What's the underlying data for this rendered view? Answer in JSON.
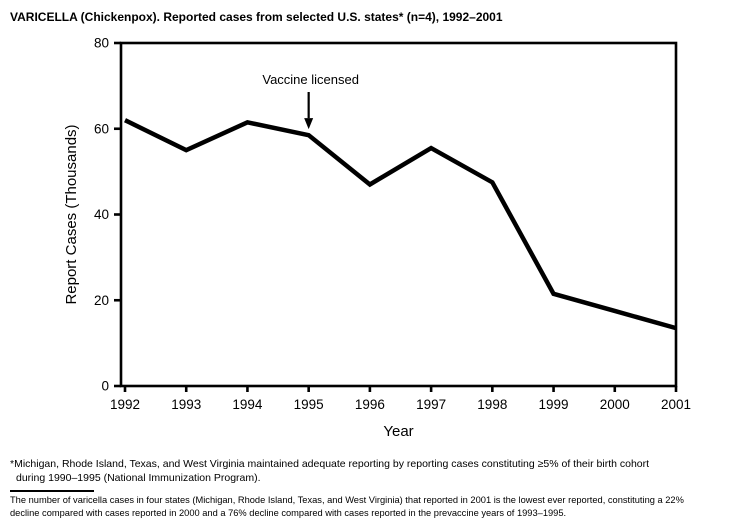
{
  "chart_data": {
    "type": "line",
    "title": "VARICELLA (Chickenpox). Reported cases from selected U.S. states* (n=4), 1992–2001",
    "x": [
      1992,
      1993,
      1994,
      1995,
      1996,
      1997,
      1998,
      1999,
      2000,
      2001
    ],
    "series": [
      {
        "name": "Reported varicella cases, 4 selected states",
        "values": [
          62,
          55,
          61.5,
          58.5,
          47,
          55.5,
          47.5,
          21.5,
          17.5,
          13.5
        ]
      }
    ],
    "xlabel": "Year",
    "ylabel": "Report Cases (Thousands)",
    "ylim": [
      0,
      80
    ],
    "yticks": [
      0,
      20,
      40,
      60,
      80
    ],
    "grid": false,
    "legend": "none",
    "line_color": "#000000",
    "axis_color": "#000000",
    "annotations": [
      {
        "text": "Vaccine licensed",
        "x": 1995,
        "arrow": "down"
      }
    ]
  },
  "footnote_asterisk": {
    "line1": "*Michigan, Rhode Island, Texas, and West Virginia maintained adequate reporting by reporting cases constituting ≥5% of their birth cohort",
    "line2": "during 1990–1995 (National Immunization Program)."
  },
  "bottom_note": {
    "line1": "The number of varicella cases in four states (Michigan, Rhode Island, Texas, and West Virginia) that reported in 2001 is the lowest ever reported, constituting a 22%",
    "line2": "decline compared with cases reported in 2000 and a 76% decline compared with cases reported in the prevaccine years of 1993–1995."
  }
}
